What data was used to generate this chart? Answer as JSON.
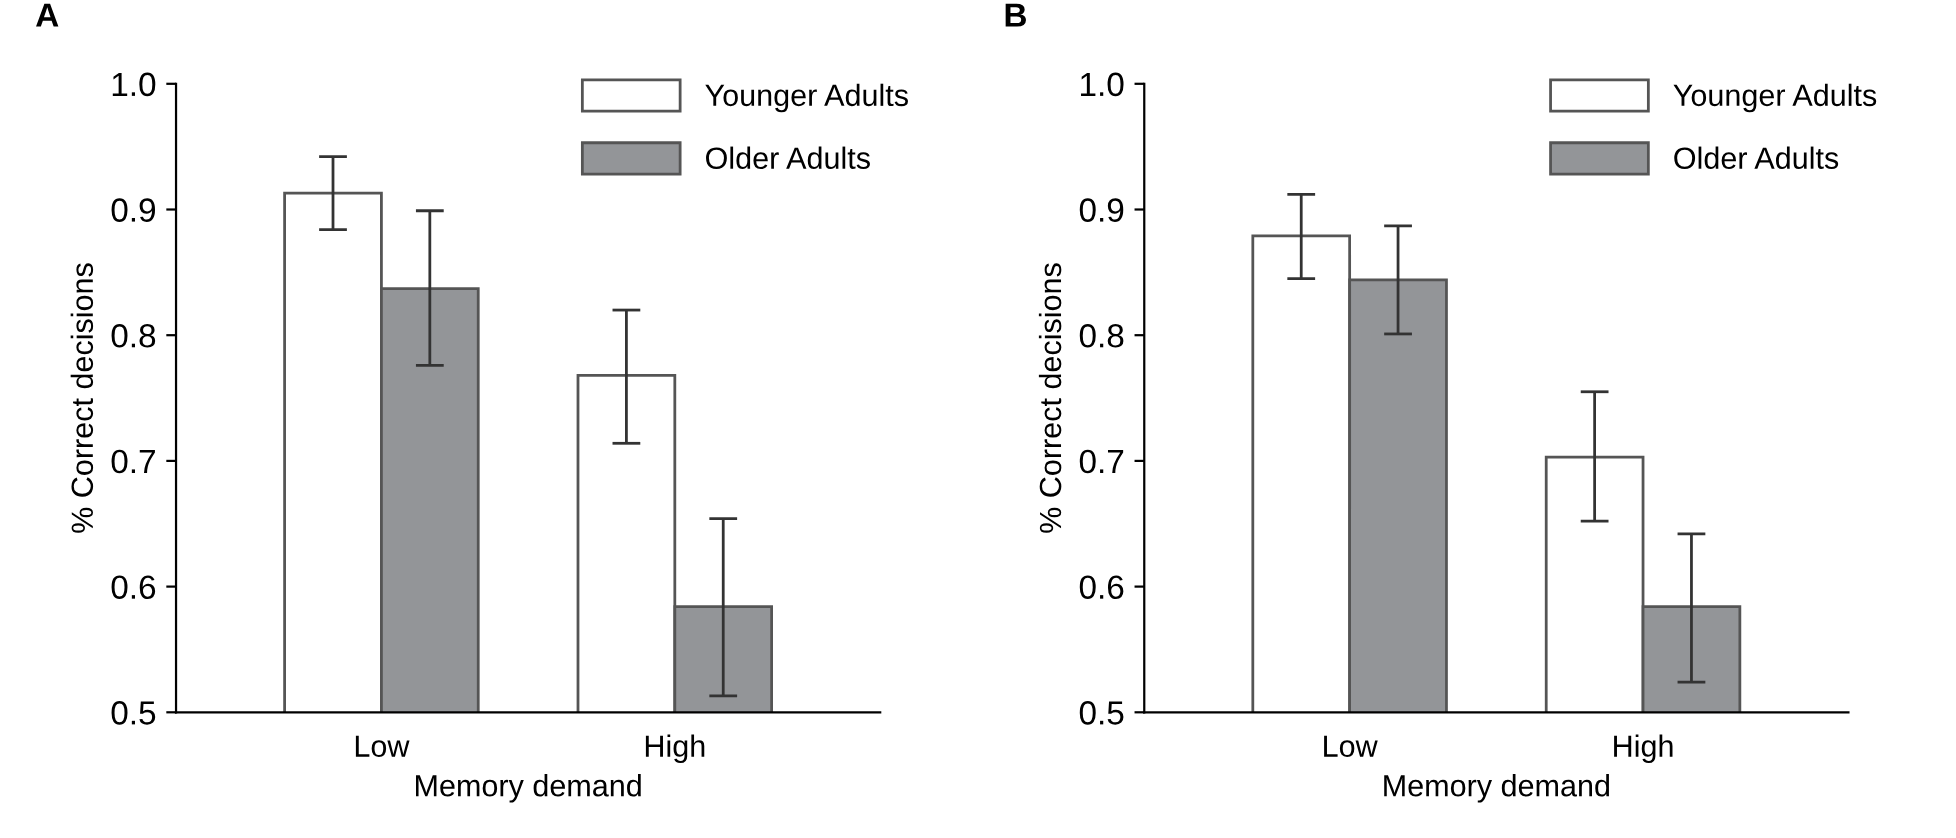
{
  "chart_data": [
    {
      "type": "bar",
      "title": "A",
      "xlabel": "Memory demand",
      "ylabel": "% Correct decisions",
      "categories": [
        "Low",
        "High"
      ],
      "series": [
        {
          "name": "Younger Adults",
          "color": "#ffffff",
          "values": [
            0.913,
            0.768
          ],
          "errors": [
            [
              0.884,
              0.942
            ],
            [
              0.714,
              0.82
            ]
          ]
        },
        {
          "name": "Older Adults",
          "color": "#939598",
          "values": [
            0.837,
            0.584
          ],
          "errors": [
            [
              0.776,
              0.899
            ],
            [
              0.513,
              0.654
            ]
          ]
        }
      ],
      "ylim": [
        0.5,
        1.0
      ],
      "yticks": [
        0.5,
        0.6,
        0.7,
        0.8,
        0.9,
        {
          "value": 1.0,
          "label": "1.0"
        }
      ],
      "legend": "top right",
      "grid": false
    },
    {
      "type": "bar",
      "title": "B",
      "xlabel": "Memory demand",
      "ylabel": "% Correct decisions",
      "categories": [
        "Low",
        "High"
      ],
      "series": [
        {
          "name": "Younger Adults",
          "color": "#ffffff",
          "values": [
            0.879,
            0.703
          ],
          "errors": [
            [
              0.845,
              0.912
            ],
            [
              0.652,
              0.755
            ]
          ]
        },
        {
          "name": "Older Adults",
          "color": "#939598",
          "values": [
            0.844,
            0.584
          ],
          "errors": [
            [
              0.801,
              0.887
            ],
            [
              0.524,
              0.642
            ]
          ]
        }
      ],
      "ylim": [
        0.5,
        1.0
      ],
      "yticks": [
        0.5,
        0.6,
        0.7,
        0.8,
        0.9,
        {
          "value": 1.0,
          "label": "1.0"
        }
      ],
      "legend": "top right",
      "grid": false
    }
  ]
}
